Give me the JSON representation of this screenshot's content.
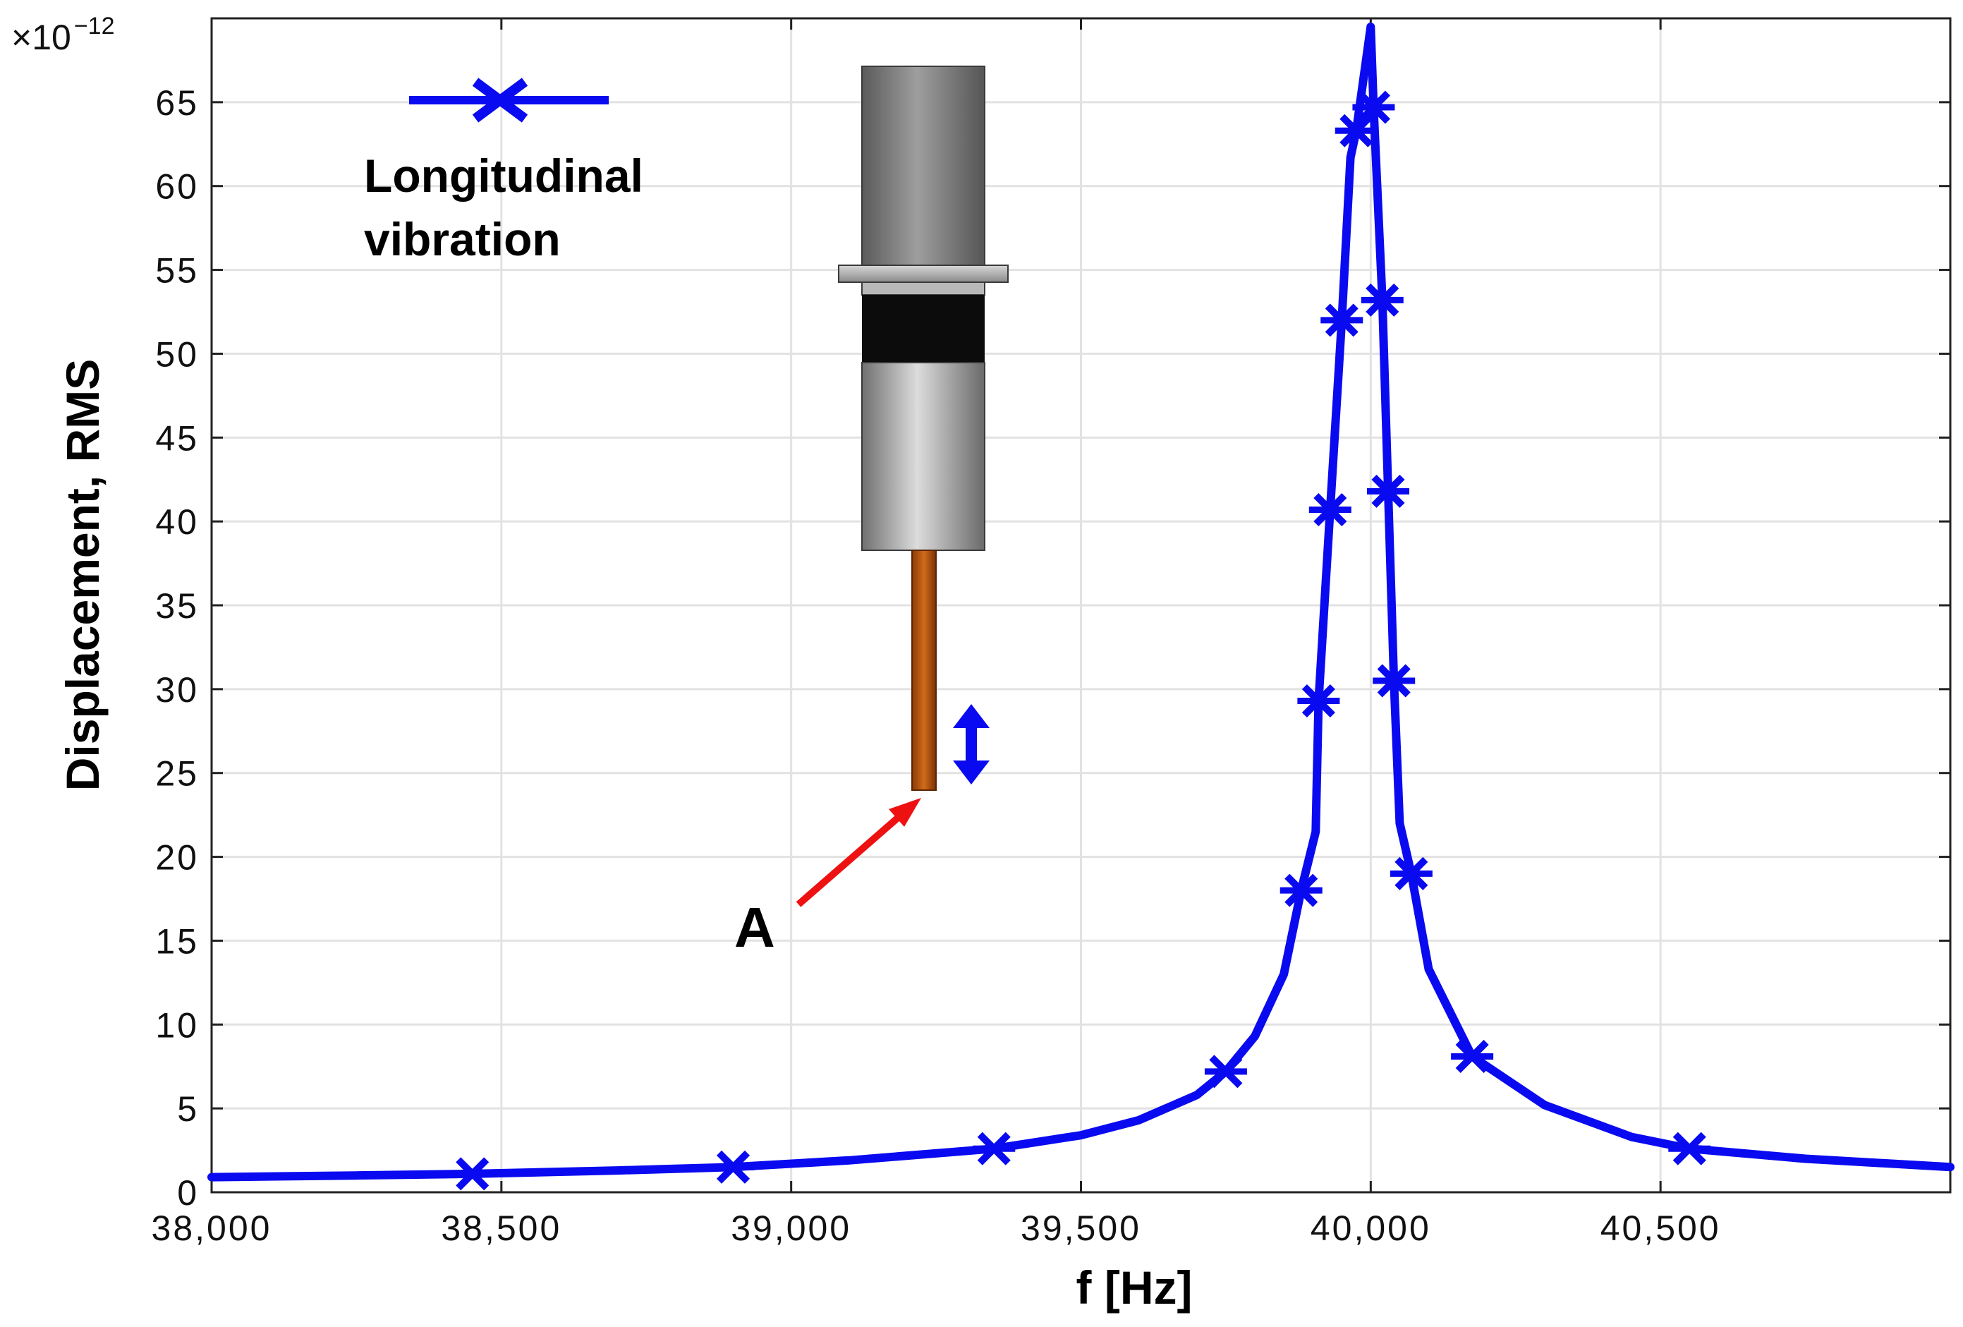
{
  "chart_data": {
    "type": "line",
    "title": "",
    "xlabel": "f [Hz]",
    "ylabel": "Displacement, RMS",
    "y_scale_prefix": "×10",
    "y_scale_exponent": "−12",
    "xlim": [
      38000,
      41000
    ],
    "ylim": [
      0,
      70
    ],
    "grid": true,
    "legend_position": "top-left",
    "x_ticks": [
      38000,
      38500,
      39000,
      39500,
      40000,
      40500
    ],
    "x_tick_labels": [
      "38,000",
      "38,500",
      "39,000",
      "39,500",
      "40,000",
      "40,500"
    ],
    "y_ticks": [
      0,
      5,
      10,
      15,
      20,
      25,
      30,
      35,
      40,
      45,
      50,
      55,
      60,
      65
    ],
    "y_tick_labels": [
      "0",
      "5",
      "10",
      "15",
      "20",
      "25",
      "30",
      "35",
      "40",
      "45",
      "50",
      "55",
      "60",
      "65"
    ],
    "series": [
      {
        "name": "Longitudinal vibration",
        "legend_label_lines": [
          "Longitudinal",
          "vibration"
        ],
        "color": "#0a0af0",
        "marker": "x",
        "curve": [
          {
            "x": 38000,
            "y": 0.9
          },
          {
            "x": 38250,
            "y": 1.0
          },
          {
            "x": 38450,
            "y": 1.1
          },
          {
            "x": 38700,
            "y": 1.3
          },
          {
            "x": 38900,
            "y": 1.5
          },
          {
            "x": 39100,
            "y": 1.9
          },
          {
            "x": 39350,
            "y": 2.6
          },
          {
            "x": 39500,
            "y": 3.4
          },
          {
            "x": 39600,
            "y": 4.3
          },
          {
            "x": 39700,
            "y": 5.8
          },
          {
            "x": 39750,
            "y": 7.2
          },
          {
            "x": 39800,
            "y": 9.3
          },
          {
            "x": 39850,
            "y": 13.0
          },
          {
            "x": 39880,
            "y": 18.0
          },
          {
            "x": 39905,
            "y": 21.5
          },
          {
            "x": 39910,
            "y": 29.3
          },
          {
            "x": 39930,
            "y": 40.7
          },
          {
            "x": 39950,
            "y": 52.0
          },
          {
            "x": 39965,
            "y": 61.7
          },
          {
            "x": 39975,
            "y": 63.3
          },
          {
            "x": 40000,
            "y": 69.5
          },
          {
            "x": 40005,
            "y": 64.7
          },
          {
            "x": 40020,
            "y": 53.2
          },
          {
            "x": 40030,
            "y": 41.8
          },
          {
            "x": 40040,
            "y": 30.5
          },
          {
            "x": 40050,
            "y": 22.0
          },
          {
            "x": 40070,
            "y": 19.0
          },
          {
            "x": 40100,
            "y": 13.3
          },
          {
            "x": 40175,
            "y": 8.1
          },
          {
            "x": 40300,
            "y": 5.2
          },
          {
            "x": 40450,
            "y": 3.3
          },
          {
            "x": 40550,
            "y": 2.6
          },
          {
            "x": 40750,
            "y": 2.0
          },
          {
            "x": 41000,
            "y": 1.5
          }
        ],
        "markers": [
          {
            "x": 38450,
            "y": 1.1
          },
          {
            "x": 38900,
            "y": 1.5
          },
          {
            "x": 39350,
            "y": 2.6
          },
          {
            "x": 39750,
            "y": 7.2
          },
          {
            "x": 39880,
            "y": 18.0
          },
          {
            "x": 39910,
            "y": 29.3
          },
          {
            "x": 39930,
            "y": 40.7
          },
          {
            "x": 39950,
            "y": 52.0
          },
          {
            "x": 39975,
            "y": 63.3
          },
          {
            "x": 40005,
            "y": 64.7
          },
          {
            "x": 40020,
            "y": 53.2
          },
          {
            "x": 40030,
            "y": 41.8
          },
          {
            "x": 40040,
            "y": 30.5
          },
          {
            "x": 40070,
            "y": 19.0
          },
          {
            "x": 40175,
            "y": 8.1
          },
          {
            "x": 40550,
            "y": 2.6
          }
        ]
      }
    ],
    "annotations": [
      {
        "text": "A",
        "description": "red arrow pointing to the tip of the transducer tool"
      }
    ]
  },
  "colors": {
    "series": "#0a0af0",
    "arrow": "#ee1111",
    "grid": "#e2e2e2",
    "tool_tip": "#b5520a"
  }
}
